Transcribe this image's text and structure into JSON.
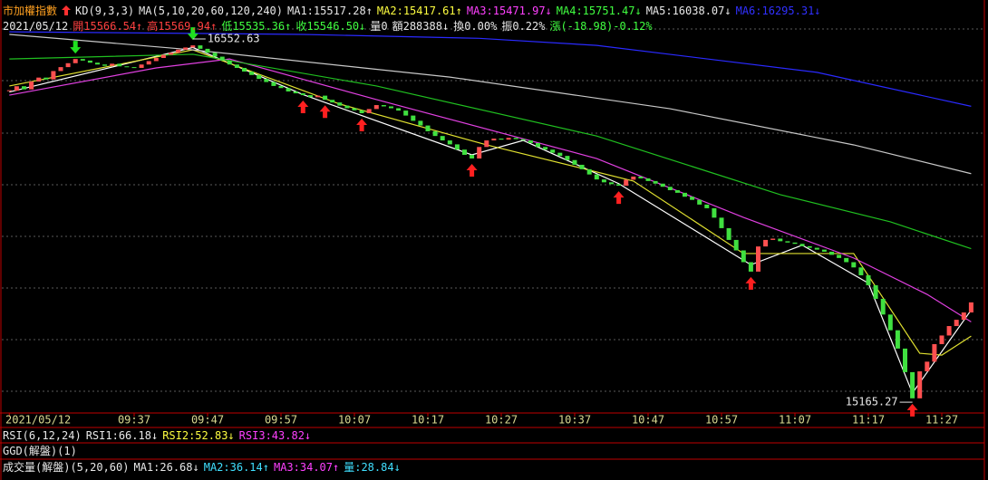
{
  "header": {
    "row1": [
      {
        "text": "市加權指數",
        "color": "#ffa020"
      },
      {
        "text": "KD(9,3,3)",
        "color": "#e8e8e8"
      },
      {
        "text": "MA(5,10,20,60,120,240)",
        "color": "#e8e8e8"
      },
      {
        "text": "MA1:15517.28↑",
        "color": "#e8e8e8"
      },
      {
        "text": "MA2:15417.61↑",
        "color": "#ffff40"
      },
      {
        "text": "MA3:15471.97↓",
        "color": "#ff40ff"
      },
      {
        "text": "MA4:15751.47↓",
        "color": "#40ff40"
      },
      {
        "text": "MA5:16038.07↓",
        "color": "#e8e8e8"
      },
      {
        "text": "MA6:16295.31↓",
        "color": "#3030ff"
      }
    ],
    "row2": [
      {
        "text": "2021/05/12",
        "color": "#e8e8e8"
      },
      {
        "text": "開15566.54↑",
        "color": "#ff4040"
      },
      {
        "text": "高15569.94↑",
        "color": "#ff4040"
      },
      {
        "text": "低15535.36↑",
        "color": "#40ff40"
      },
      {
        "text": "收15546.50↓",
        "color": "#40ff40"
      },
      {
        "text": "量0",
        "color": "#e8e8e8"
      },
      {
        "text": "額288388↓",
        "color": "#e8e8e8"
      },
      {
        "text": "換0.00%",
        "color": "#e8e8e8"
      },
      {
        "text": "振0.22%",
        "color": "#e8e8e8"
      },
      {
        "text": "漲(-18.98)-0.12%",
        "color": "#40ff40"
      }
    ]
  },
  "chart_data": {
    "type": "candlestick",
    "ylim": [
      15127.5,
      16673.7
    ],
    "ygrid": [
      16590.7,
      16393.5,
      16193,
      15995.7,
      15798.5,
      15601.4,
      15404.2,
      15207
    ],
    "xlim": [
      0,
      131
    ],
    "xticks": [
      {
        "value": 0,
        "label": "2021/05/12"
      },
      {
        "value": 17,
        "label": "09:37"
      },
      {
        "value": 27,
        "label": "09:47"
      },
      {
        "value": 37,
        "label": "09:57"
      },
      {
        "value": 47,
        "label": "10:07"
      },
      {
        "value": 57,
        "label": "10:17"
      },
      {
        "value": 67,
        "label": "10:27"
      },
      {
        "value": 77,
        "label": "10:37"
      },
      {
        "value": 87,
        "label": "10:47"
      },
      {
        "value": 97,
        "label": "10:57"
      },
      {
        "value": 107,
        "label": "11:07"
      },
      {
        "value": 117,
        "label": "11:17"
      },
      {
        "value": 127,
        "label": "11:27"
      }
    ],
    "up_color": "#ff5050",
    "down_color": "#40e040",
    "closes": [
      16355,
      16372,
      16360,
      16390,
      16405,
      16398,
      16430,
      16445,
      16460,
      16476,
      16470,
      16462,
      16455,
      16450,
      16458,
      16448,
      16445,
      16442,
      16455,
      16468,
      16480,
      16492,
      16500,
      16512,
      16520,
      16528,
      16515,
      16500,
      16485,
      16470,
      16455,
      16442,
      16428,
      16415,
      16400,
      16388,
      16373,
      16365,
      16352,
      16345,
      16338,
      16330,
      16336,
      16320,
      16310,
      16298,
      16288,
      16280,
      16269,
      16285,
      16300,
      16295,
      16288,
      16279,
      16260,
      16240,
      16222,
      16200,
      16182,
      16165,
      16150,
      16130,
      16110,
      16096,
      16140,
      16165,
      16172,
      16168,
      16175,
      16170,
      16165,
      16155,
      16140,
      16130,
      16118,
      16106,
      16090,
      16072,
      16055,
      16035,
      16016,
      16005,
      15998,
      15992,
      16015,
      16027,
      16020,
      16010,
      16000,
      15988,
      15975,
      15965,
      15950,
      15938,
      15920,
      15906,
      15870,
      15830,
      15785,
      15745,
      15700,
      15664,
      15760,
      15785,
      15790,
      15780,
      15775,
      15770,
      15761,
      15755,
      15748,
      15740,
      15728,
      15716,
      15700,
      15680,
      15650,
      15612,
      15560,
      15500,
      15440,
      15370,
      15280,
      15180,
      15283,
      15320,
      15387,
      15420,
      15456,
      15480,
      15508,
      15546.5
    ],
    "ma_lines": [
      {
        "color": "#ffffff",
        "x": [
          0,
          25,
          40,
          63,
          70,
          83,
          101,
          108,
          117,
          123,
          131
        ],
        "values": [
          16350,
          16520,
          16340,
          16110,
          16165,
          16000,
          15690,
          15765,
          15620,
          15200,
          15517.28
        ]
      },
      {
        "color": "#e0e030",
        "x": [
          0,
          25,
          45,
          65,
          85,
          100,
          115,
          124,
          127,
          131
        ],
        "values": [
          16373,
          16511,
          16304,
          16148,
          16010,
          15733,
          15733,
          15352,
          15345,
          15417.61
        ]
      },
      {
        "color": "#e040e0",
        "x": [
          0,
          20,
          30,
          50,
          80,
          100,
          115,
          125,
          131
        ],
        "values": [
          16338,
          16442,
          16476,
          16321,
          16096,
          15871,
          15716,
          15577,
          15471.97
        ]
      },
      {
        "color": "#20c020",
        "x": [
          0,
          25,
          50,
          80,
          105,
          120,
          131
        ],
        "values": [
          16476,
          16494,
          16373,
          16182,
          15958,
          15854,
          15751.47
        ]
      },
      {
        "color": "#c8c8c8",
        "x": [
          0,
          25,
          60,
          90,
          115,
          131
        ],
        "values": [
          16570,
          16511,
          16407,
          16286,
          16148,
          16038.07
        ]
      },
      {
        "color": "#2a2aff",
        "x": [
          0,
          40,
          64,
          80,
          110,
          131
        ],
        "values": [
          16580,
          16570,
          16555,
          16528,
          16425,
          16295.31
        ]
      }
    ],
    "signals": {
      "buy": [
        40,
        43,
        48,
        63,
        83,
        101,
        123
      ],
      "sell": [
        9,
        25
      ]
    },
    "annotations": [
      {
        "text": "16552.63",
        "x": 25,
        "value": 16552.63
      },
      {
        "text": "15165.27",
        "x": 123,
        "value": 15165.27
      }
    ]
  },
  "panels": [
    [
      {
        "text": "RSI(6,12,24)",
        "color": "#e8e8e8"
      },
      {
        "text": "RSI1:66.18↓",
        "color": "#e8e8e8"
      },
      {
        "text": "RSI2:52.83↓",
        "color": "#ffff40"
      },
      {
        "text": "RSI3:43.82↓",
        "color": "#ff40ff"
      }
    ],
    [
      {
        "text": "GGD(解盤)(1)",
        "color": "#e8e8e8"
      }
    ],
    [
      {
        "text": "成交量(解盤)(5,20,60)",
        "color": "#e8e8e8"
      },
      {
        "text": "MA1:26.68↓",
        "color": "#e8e8e8"
      },
      {
        "text": "MA2:36.14↑",
        "color": "#40e0ff"
      },
      {
        "text": "MA3:34.07↑",
        "color": "#ff40ff"
      },
      {
        "text": "量:28.84↓",
        "color": "#40e0ff"
      }
    ]
  ]
}
